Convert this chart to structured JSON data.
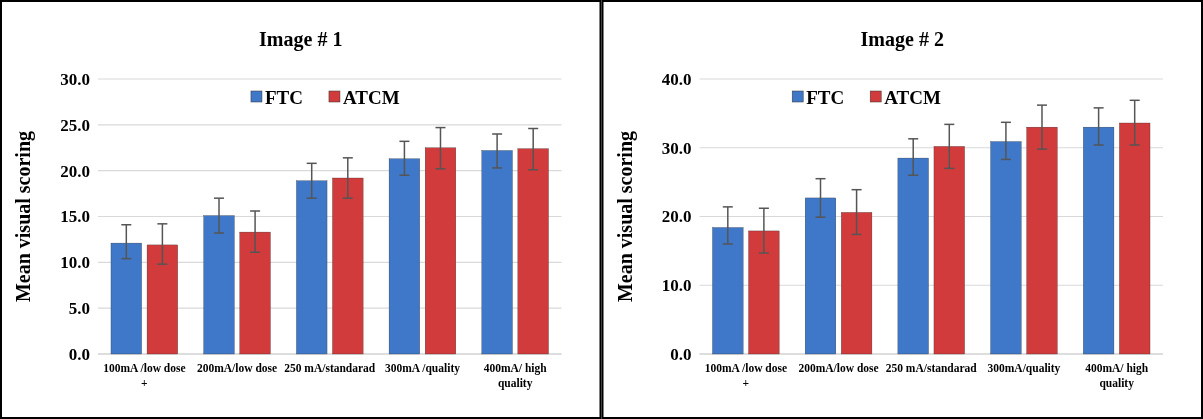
{
  "chart_data": [
    {
      "type": "bar",
      "title": "Image # 1",
      "ylabel": "Mean visual scoring",
      "categories": [
        "100mA /low dose +",
        "200mA/low dose",
        "250 mA/standarad",
        "300mA /quality",
        "400mA/ high quality"
      ],
      "series": [
        {
          "name": "FTC",
          "color": "#3f78c8",
          "values": [
            12.1,
            15.1,
            18.9,
            21.3,
            22.2
          ],
          "errors": [
            [
              10.4,
              14.1
            ],
            [
              13.2,
              17.0
            ],
            [
              17.0,
              20.8
            ],
            [
              19.5,
              23.2
            ],
            [
              20.3,
              24.0
            ]
          ]
        },
        {
          "name": "ATCM",
          "color": "#d23b3b",
          "values": [
            11.9,
            13.3,
            19.2,
            22.5,
            22.4
          ],
          "errors": [
            [
              9.8,
              14.2
            ],
            [
              11.1,
              15.6
            ],
            [
              17.0,
              21.4
            ],
            [
              20.2,
              24.7
            ],
            [
              20.1,
              24.6
            ]
          ]
        }
      ],
      "ylim": [
        0,
        30
      ],
      "yticks": [
        {
          "value": 0,
          "label": "0.0"
        },
        {
          "value": 5,
          "label": "5.0"
        },
        {
          "value": 10,
          "label": "10.0"
        },
        {
          "value": 15,
          "label": "15.0"
        },
        {
          "value": 20,
          "label": "20.0"
        },
        {
          "value": 25,
          "label": "25.0"
        },
        {
          "value": 30,
          "label": "30.0"
        }
      ],
      "grid": "y",
      "legend": "top"
    },
    {
      "type": "bar",
      "title": "Image # 2",
      "ylabel": "Mean visual scoring",
      "categories": [
        "100mA /low dose +",
        "200mA/low dose",
        "250 mA/standarad",
        "300mA/quality",
        "400mA/ high quality"
      ],
      "series": [
        {
          "name": "FTC",
          "color": "#3f78c8",
          "values": [
            18.4,
            22.7,
            28.5,
            30.9,
            33.0
          ],
          "errors": [
            [
              16.0,
              21.4
            ],
            [
              19.9,
              25.5
            ],
            [
              26.0,
              31.3
            ],
            [
              28.3,
              33.7
            ],
            [
              30.4,
              35.8
            ]
          ]
        },
        {
          "name": "ATCM",
          "color": "#d23b3b",
          "values": [
            17.9,
            20.6,
            30.2,
            33.0,
            33.6
          ],
          "errors": [
            [
              14.7,
              21.2
            ],
            [
              17.4,
              23.9
            ],
            [
              27.0,
              33.4
            ],
            [
              29.8,
              36.2
            ],
            [
              30.4,
              36.9
            ]
          ]
        }
      ],
      "ylim": [
        0,
        40
      ],
      "yticks": [
        {
          "value": 0,
          "label": "0.0"
        },
        {
          "value": 10,
          "label": "10.0"
        },
        {
          "value": 20,
          "label": "20.0"
        },
        {
          "value": 30,
          "label": "30.0"
        },
        {
          "value": 40,
          "label": "40.0"
        }
      ],
      "grid": "y",
      "legend": "top left"
    }
  ]
}
